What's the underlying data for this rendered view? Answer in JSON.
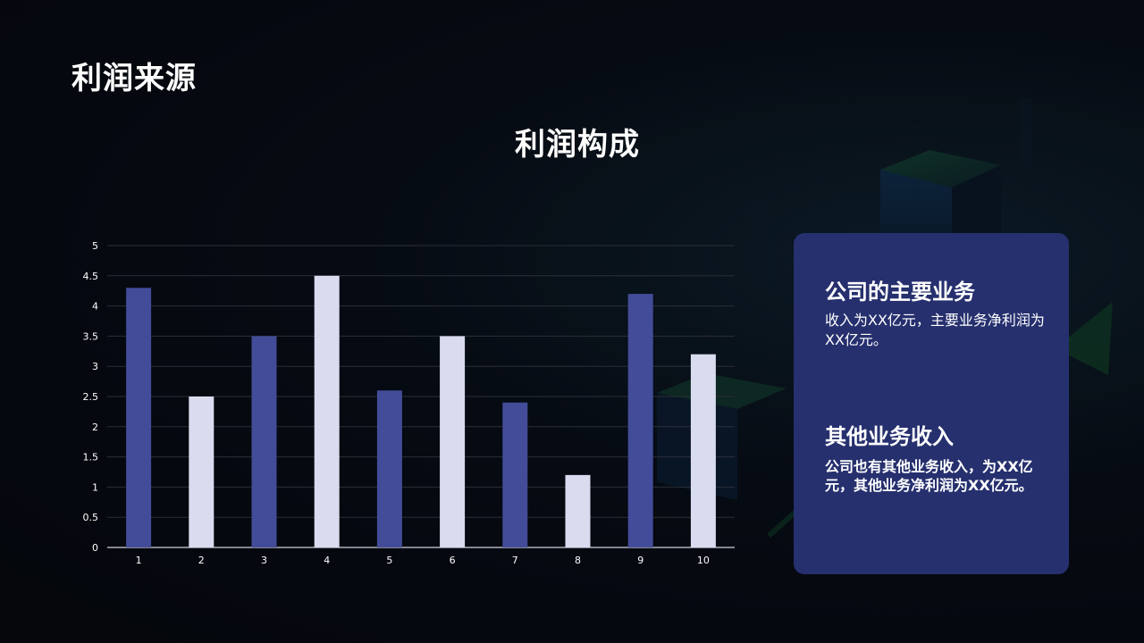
{
  "page": {
    "title": "利润来源"
  },
  "chart_data": {
    "type": "bar",
    "title": "利润构成",
    "categories": [
      "1",
      "2",
      "3",
      "4",
      "5",
      "6",
      "7",
      "8",
      "9",
      "10"
    ],
    "values": [
      4.3,
      2.5,
      3.5,
      4.5,
      2.6,
      3.5,
      2.4,
      1.2,
      4.2,
      3.2
    ],
    "bar_colors": [
      "#434c98",
      "#d9dcee",
      "#434c98",
      "#d9dcee",
      "#434c98",
      "#d9dcee",
      "#434c98",
      "#d9dcee",
      "#434c98",
      "#d9dcee"
    ],
    "yticks": [
      "0",
      "0.5",
      "1",
      "1.5",
      "2",
      "2.5",
      "3",
      "3.5",
      "4",
      "4.5",
      "5"
    ],
    "ylim": [
      0,
      5
    ],
    "grid": true,
    "legend": "none"
  },
  "card": {
    "heading1": "公司的主要业务",
    "text1": "收入为XX亿元，主要业务净利润为XX亿元。",
    "heading2": "其他业务收入",
    "text2": "公司也有其他业务收入，为XX亿元，其他业务净利润为XX亿元。"
  },
  "colors": {
    "card_bg": "#26306e",
    "axis_text": "#ffffff",
    "grid": "#2a2e38"
  }
}
